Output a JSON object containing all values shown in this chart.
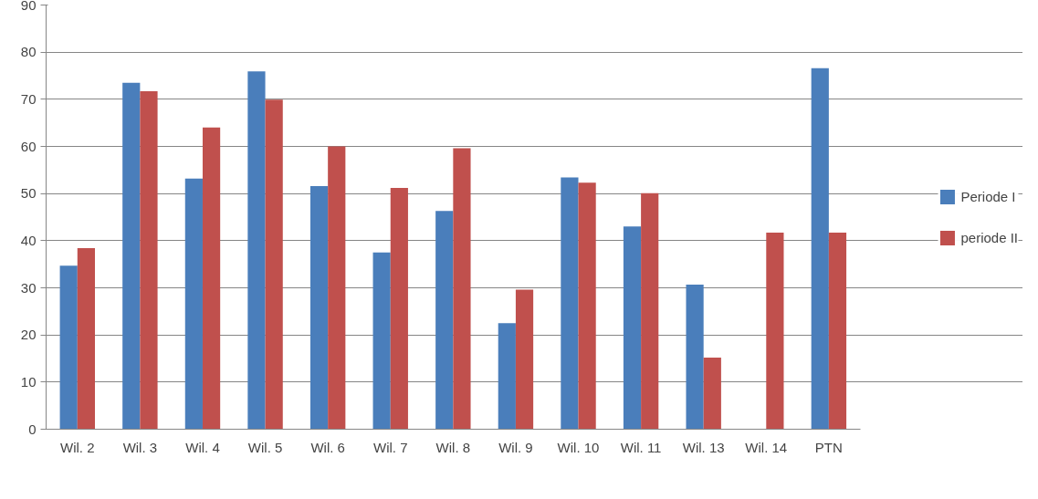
{
  "chart_data": {
    "type": "bar",
    "categories": [
      "Wil. 2",
      "Wil. 3",
      "Wil. 4",
      "Wil. 5",
      "Wil. 6",
      "Wil. 7",
      "Wil. 8",
      "Wil. 9",
      "Wil. 10",
      "Wil. 11",
      "Wil. 13",
      "Wil. 14",
      "PTN"
    ],
    "series": [
      {
        "name": "Periode I",
        "color": "#4a7ebb",
        "values": [
          34.7,
          73.5,
          53.2,
          75.9,
          51.6,
          37.5,
          46.3,
          22.5,
          53.4,
          43,
          30.7,
          null,
          76.6
        ]
      },
      {
        "name": "periode II",
        "color": "#c0504d",
        "values": [
          38.4,
          71.7,
          64,
          69.9,
          60,
          51.2,
          59.6,
          29.6,
          52.3,
          50.1,
          15.2,
          41.7,
          41.7
        ]
      }
    ],
    "ylim": [
      0,
      90
    ],
    "yticks": [
      0,
      10,
      20,
      30,
      40,
      50,
      60,
      70,
      80,
      90
    ],
    "grid": "y",
    "legend": "right"
  }
}
